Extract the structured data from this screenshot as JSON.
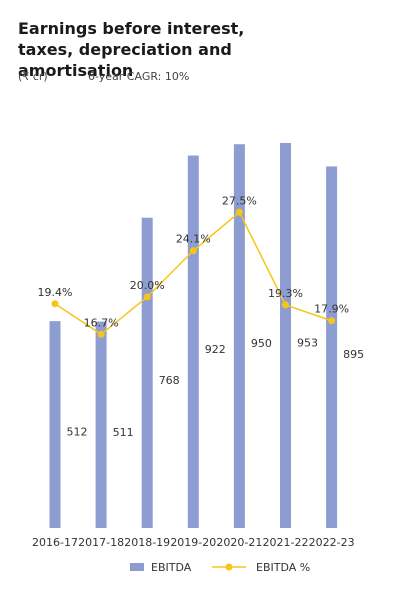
{
  "chart_data": {
    "type": "combo",
    "title": "Earnings before interest, taxes, depreciation and amortisation",
    "subtitle": "(₹ cr)",
    "annotation": "6-year CAGR: 10%",
    "categories": [
      "2016-17",
      "2017-18",
      "2018-19",
      "2019-20",
      "2020-21",
      "2021-22",
      "2022-23"
    ],
    "series": [
      {
        "name": "EBITDA",
        "type": "bar",
        "color": "#8e9dd1",
        "values": [
          512,
          511,
          768,
          922,
          950,
          953,
          895
        ]
      },
      {
        "name": "EBITDA %",
        "type": "line",
        "color": "#f5c518",
        "values": [
          19.4,
          16.7,
          20.0,
          24.1,
          27.5,
          19.3,
          17.9
        ],
        "value_labels": [
          "19.4%",
          "16.7%",
          "20.0%",
          "24.1%",
          "27.5%",
          "19.3%",
          "17.9%"
        ]
      }
    ]
  }
}
